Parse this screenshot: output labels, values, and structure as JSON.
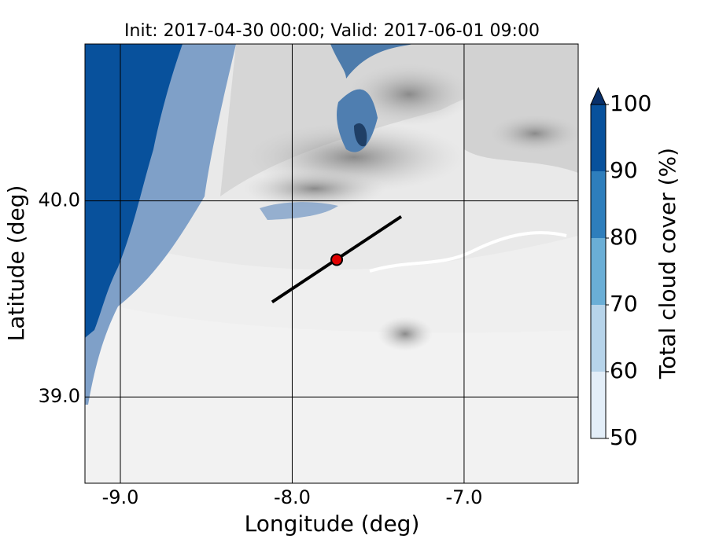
{
  "title": "Init: 2017-04-30 00:00; Valid: 2017-06-01 09:00",
  "x_axis": {
    "label": "Longitude (deg)",
    "lim": [
      -9.206,
      -6.336
    ],
    "ticks": [
      {
        "value": -9,
        "label": "-9.0"
      },
      {
        "value": -8,
        "label": "-8.0"
      },
      {
        "value": -7,
        "label": "-7.0"
      }
    ]
  },
  "y_axis": {
    "label": "Latitude (deg)",
    "lim": [
      38.56,
      40.8
    ],
    "ticks": [
      {
        "value": 39,
        "label": "39.0"
      },
      {
        "value": 40,
        "label": "40.0"
      }
    ]
  },
  "colorbar": {
    "label": "Total cloud cover (%)",
    "lim": [
      50,
      100
    ],
    "ticks": [
      50,
      60,
      70,
      80,
      90,
      100
    ],
    "colors": [
      "#e3eef8",
      "#b7d4ea",
      "#6aaed6",
      "#2e7ebc",
      "#08519c"
    ],
    "extend_color": "#08306b"
  },
  "transect": {
    "lon": [
      -8.117,
      -7.366
    ],
    "lat": [
      39.484,
      39.92
    ]
  },
  "site": {
    "lon": -7.741,
    "lat": 39.7,
    "color": "#e00000"
  }
}
